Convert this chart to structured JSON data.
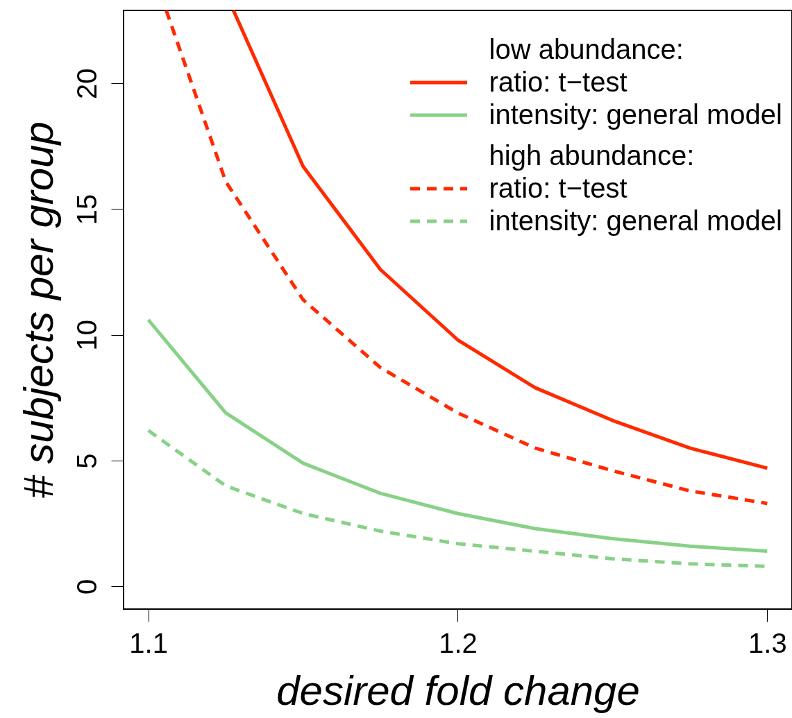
{
  "chart_data": {
    "type": "line",
    "xlabel": "desired fold change",
    "ylabel": "# subjects per group",
    "x": [
      1.1,
      1.125,
      1.15,
      1.175,
      1.2,
      1.225,
      1.25,
      1.275,
      1.3
    ],
    "xlim": [
      1.092,
      1.308
    ],
    "xticks": [
      1.1,
      1.2,
      1.3
    ],
    "ylim": [
      -0.9,
      22.9
    ],
    "yticks": [
      0,
      5,
      10,
      15,
      20
    ],
    "grid": false,
    "legend": "top right",
    "annotations": [
      "low abundance:",
      "high abundance:"
    ],
    "series": [
      {
        "name": "ratio: t−test",
        "color": "#ff2a00",
        "line_style": "solid",
        "x": [
          1.1275,
          1.15,
          1.175,
          1.2,
          1.225,
          1.25,
          1.275,
          1.3
        ],
        "values": [
          22.9,
          16.7,
          12.6,
          9.8,
          7.9,
          6.6,
          5.5,
          4.7
        ]
      },
      {
        "name": "intensity: general model",
        "color": "#88d188",
        "line_style": "solid",
        "values": [
          10.6,
          6.9,
          4.9,
          3.7,
          2.9,
          2.3,
          1.9,
          1.6,
          1.4
        ]
      },
      {
        "name": "ratio: t−test",
        "color": "#ff2a00",
        "line_style": "dashed",
        "x": [
          1.1058,
          1.125,
          1.15,
          1.175,
          1.2,
          1.225,
          1.25,
          1.275,
          1.3
        ],
        "values": [
          22.9,
          16.1,
          11.4,
          8.7,
          6.9,
          5.5,
          4.6,
          3.8,
          3.3
        ]
      },
      {
        "name": "intensity: general model",
        "color": "#88d188",
        "line_style": "dashed",
        "values": [
          6.2,
          4.0,
          2.9,
          2.2,
          1.7,
          1.4,
          1.1,
          0.9,
          0.8
        ]
      }
    ]
  }
}
